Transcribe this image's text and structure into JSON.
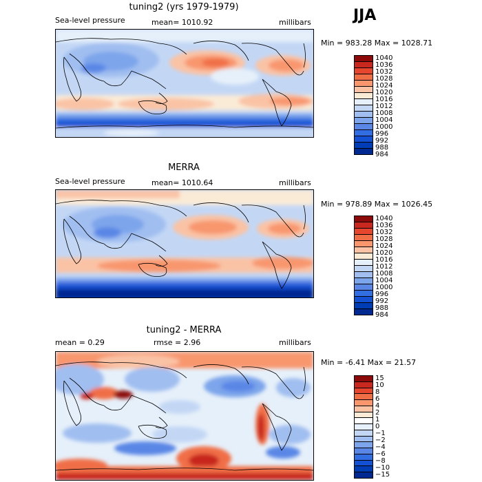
{
  "season": "JJA",
  "palettes": {
    "abs": [
      "#8c0a0a",
      "#c8281e",
      "#e6462d",
      "#f06e46",
      "#f8966e",
      "#fac3a5",
      "#faebd7",
      "#e6f0fa",
      "#c3d7f5",
      "#a0bef0",
      "#7da5eb",
      "#5a87e6",
      "#326ee1",
      "#1450d2",
      "#003cb4",
      "#002891"
    ],
    "diff": [
      "#8c0a0a",
      "#c8281e",
      "#e6462d",
      "#f06e46",
      "#f8966e",
      "#fac3a5",
      "#faebd7",
      "#ffffff",
      "#e6f0fa",
      "#c3d7f5",
      "#a0bef0",
      "#7da5eb",
      "#5a87e6",
      "#326ee1",
      "#1450d2",
      "#003cb4",
      "#002891"
    ]
  },
  "panels": [
    {
      "title": "tuning2 (yrs 1979-1979)",
      "left_label": "Sea-level pressure",
      "mid_label": "mean= 1010.92",
      "right_label": "millibars",
      "range_text": "Min = 983.28 Max = 1028.71",
      "levels": [
        "1040",
        "1036",
        "1032",
        "1028",
        "1024",
        "1020",
        "1016",
        "1012",
        "1008",
        "1004",
        "1000",
        "996",
        "992",
        "988",
        "984"
      ],
      "palette": "abs"
    },
    {
      "title": "MERRA",
      "left_label": "Sea-level pressure",
      "mid_label": "mean= 1010.64",
      "right_label": "millibars",
      "range_text": "Min = 978.89 Max = 1026.45",
      "levels": [
        "1040",
        "1036",
        "1032",
        "1028",
        "1024",
        "1020",
        "1016",
        "1012",
        "1008",
        "1004",
        "1000",
        "996",
        "992",
        "988",
        "984"
      ],
      "palette": "abs"
    },
    {
      "title": "tuning2 - MERRA",
      "left_label": "mean =    0.29",
      "mid_label": "rmse =    2.96",
      "right_label": "millibars",
      "range_text": "Min =  -6.41 Max =   21.57",
      "levels": [
        "15",
        "10",
        "8",
        "6",
        "4",
        "2",
        "1",
        "0",
        "−1",
        "−2",
        "−4",
        "−6",
        "−8",
        "−10",
        "−15"
      ],
      "palette": "diff"
    }
  ]
}
